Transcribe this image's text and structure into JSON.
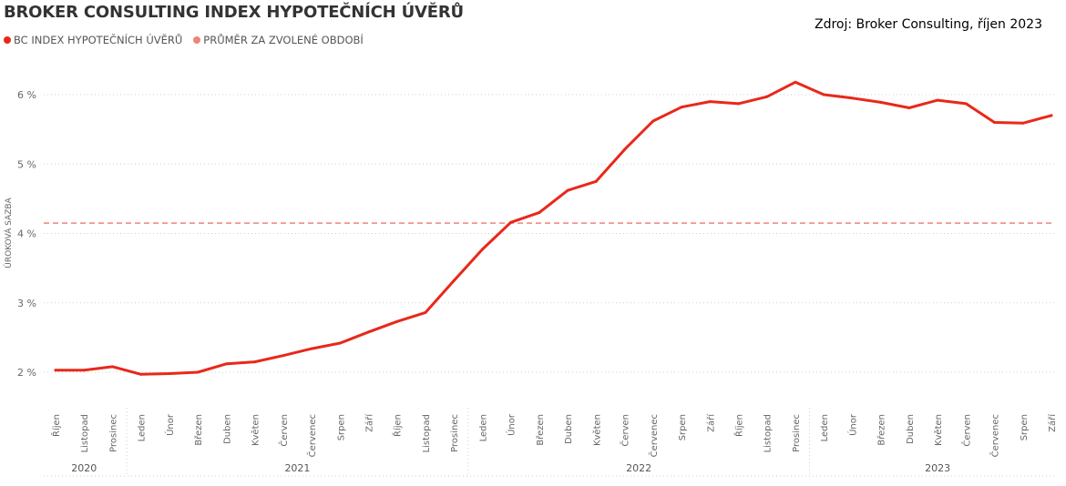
{
  "title": "BROKER CONSULTING INDEX HYPOTEČNÍCH ÚVĚRŮ",
  "source": "Zdroj: Broker Consulting, říjen 2023",
  "colors": {
    "series": "#e8281a",
    "average": "#f0827a",
    "grid": "#cfcfcf",
    "text": "#666666"
  },
  "legend": [
    {
      "label": "BC INDEX HYPOTEČNÍCH ÚVĚRŮ",
      "color": "#e8281a"
    },
    {
      "label": "PRŮMĚR ZA ZVOLENÉ OBDOBÍ",
      "color": "#f0827a"
    }
  ],
  "chart_data": {
    "type": "line",
    "ylabel": "ÚROKOVÁ SAZBA",
    "xlabel": "",
    "ylim": [
      1.8,
      6.5
    ],
    "yticks": [
      2,
      3,
      4,
      5,
      6
    ],
    "ytick_labels": [
      "2 %",
      "3 %",
      "4 %",
      "5 %",
      "6 %"
    ],
    "grid": true,
    "legend_position": "top-left",
    "categories": [
      "Říjen",
      "Listopad",
      "Prosinec",
      "Leden",
      "Únor",
      "Březen",
      "Duben",
      "Květen",
      "Červen",
      "Červenec",
      "Srpen",
      "Září",
      "Říjen",
      "Listopad",
      "Prosinec",
      "Leden",
      "Únor",
      "Březen",
      "Duben",
      "Květen",
      "Červen",
      "Červenec",
      "Srpen",
      "Září",
      "Říjen",
      "Listopad",
      "Prosinec",
      "Leden",
      "Únor",
      "Březen",
      "Duben",
      "Květen",
      "Červen",
      "Červenec",
      "Srpen",
      "Září"
    ],
    "years": [
      {
        "label": "2020",
        "start": 0,
        "end": 2
      },
      {
        "label": "2021",
        "start": 3,
        "end": 14
      },
      {
        "label": "2022",
        "start": 15,
        "end": 26
      },
      {
        "label": "2023",
        "start": 27,
        "end": 35
      }
    ],
    "series": [
      {
        "name": "BC INDEX HYPOTEČNÍCH ÚVĚRŮ",
        "values": [
          2.03,
          2.03,
          2.08,
          1.97,
          1.98,
          2.0,
          2.12,
          2.15,
          2.24,
          2.34,
          2.42,
          2.58,
          2.73,
          2.86,
          3.32,
          3.77,
          4.16,
          4.3,
          4.62,
          4.75,
          5.21,
          5.62,
          5.82,
          5.9,
          5.87,
          5.97,
          6.18,
          6.0,
          5.95,
          5.89,
          5.81,
          5.92,
          5.87,
          5.6,
          5.59,
          5.7
        ]
      }
    ],
    "average": {
      "name": "PRŮMĚR ZA ZVOLENÉ OBDOBÍ",
      "value": 4.15
    }
  }
}
